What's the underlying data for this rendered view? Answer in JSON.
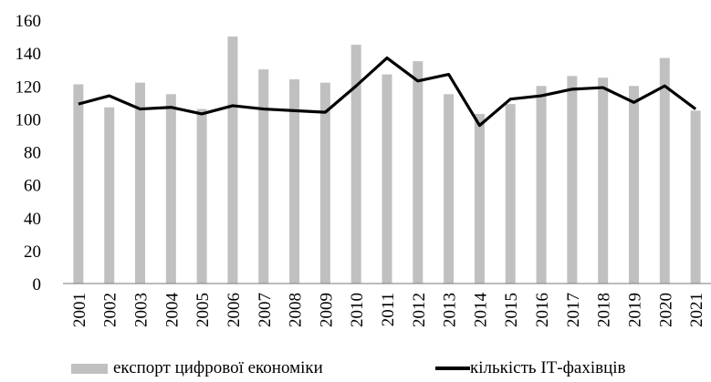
{
  "chart_data": {
    "type": "bar",
    "categories": [
      "2001",
      "2002",
      "2003",
      "2004",
      "2005",
      "2006",
      "2007",
      "2008",
      "2009",
      "2010",
      "2011",
      "2012",
      "2013",
      "2014",
      "2015",
      "2016",
      "2017",
      "2018",
      "2019",
      "2020",
      "2021"
    ],
    "series": [
      {
        "name": "експорт цифрової економіки",
        "type": "bar",
        "color": "#c0c0c0",
        "values": [
          121,
          107,
          122,
          115,
          106,
          150,
          130,
          124,
          122,
          145,
          127,
          135,
          115,
          103,
          109,
          120,
          126,
          125,
          120,
          137,
          105
        ]
      },
      {
        "name": "кількість ІТ-фахівців",
        "type": "line",
        "color": "#000000",
        "values": [
          109,
          114,
          106,
          107,
          103,
          108,
          106,
          105,
          104,
          120,
          137,
          123,
          127,
          96,
          112,
          114,
          118,
          119,
          110,
          120,
          106
        ]
      }
    ],
    "ylim": [
      0,
      160
    ],
    "yticks": [
      "0",
      "20",
      "40",
      "60",
      "80",
      "100",
      "120",
      "140",
      "160"
    ],
    "grid": false,
    "legend_position": "bottom"
  }
}
